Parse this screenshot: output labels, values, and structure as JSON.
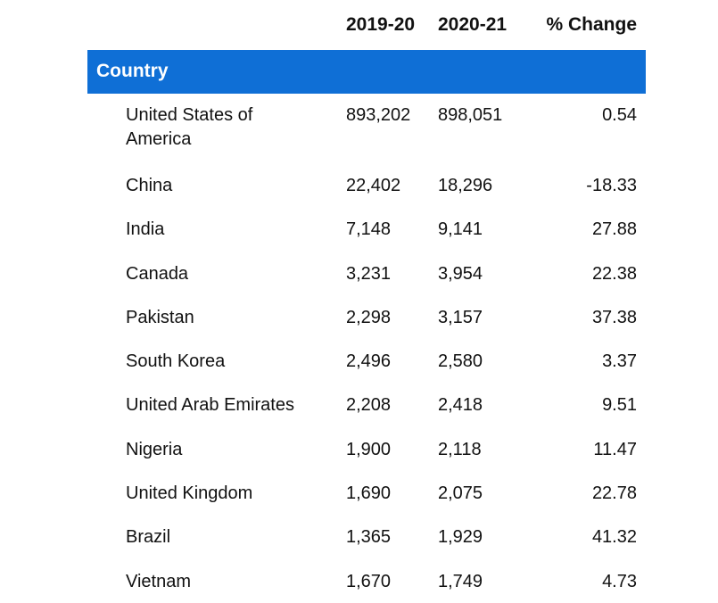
{
  "table": {
    "columns": {
      "year1": "2019-20",
      "year2": "2020-21",
      "change": "% Change"
    },
    "group_label": "Country",
    "rows": [
      {
        "country": "United States of America",
        "year1": "893,202",
        "year2": "898,051",
        "change": "0.54"
      },
      {
        "country": "China",
        "year1": "22,402",
        "year2": "18,296",
        "change": "-18.33"
      },
      {
        "country": "India",
        "year1": "7,148",
        "year2": "9,141",
        "change": "27.88"
      },
      {
        "country": "Canada",
        "year1": "3,231",
        "year2": "3,954",
        "change": "22.38"
      },
      {
        "country": "Pakistan",
        "year1": "2,298",
        "year2": "3,157",
        "change": "37.38"
      },
      {
        "country": "South Korea",
        "year1": "2,496",
        "year2": "2,580",
        "change": "3.37"
      },
      {
        "country": "United Arab Emirates",
        "year1": "2,208",
        "year2": "2,418",
        "change": "9.51"
      },
      {
        "country": "Nigeria",
        "year1": "1,900",
        "year2": "2,118",
        "change": "11.47"
      },
      {
        "country": "United Kingdom",
        "year1": "1,690",
        "year2": "2,075",
        "change": "22.78"
      },
      {
        "country": "Brazil",
        "year1": "1,365",
        "year2": "1,929",
        "change": "41.32"
      },
      {
        "country": "Vietnam",
        "year1": "1,670",
        "year2": "1,749",
        "change": "4.73"
      }
    ]
  },
  "colors": {
    "band": "#0f6fd6",
    "band_text": "#ffffff",
    "text": "#111111"
  }
}
